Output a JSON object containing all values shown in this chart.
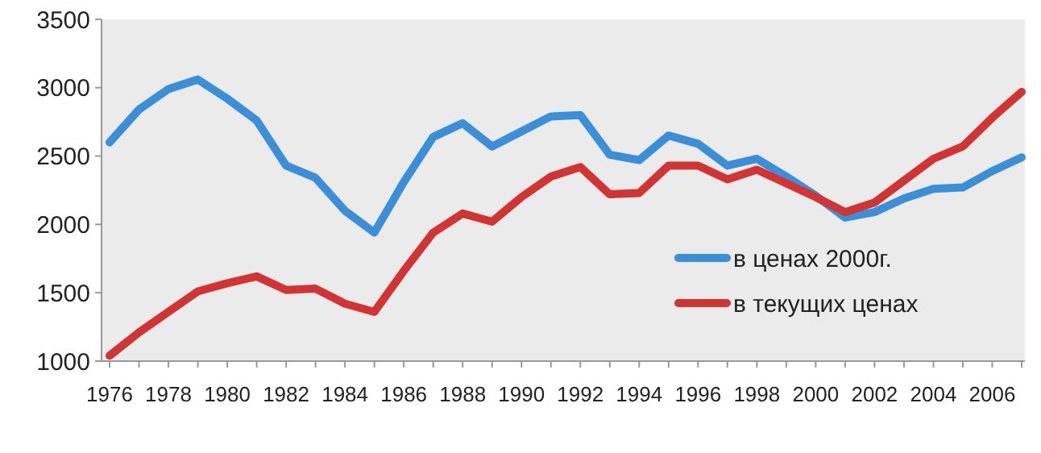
{
  "chart_data": {
    "type": "line",
    "categories": [
      "1976",
      null,
      "1978",
      null,
      "1980",
      null,
      "1982",
      null,
      "1984",
      null,
      "1986",
      null,
      "1988",
      null,
      "1990",
      null,
      "1992",
      null,
      "1994",
      null,
      "1996",
      null,
      "1998",
      null,
      "2000",
      null,
      "2002",
      null,
      "2004",
      null,
      "2006",
      null
    ],
    "series": [
      {
        "name": "в ценах 2000г.",
        "color": "#3b8fd8",
        "values": [
          2600,
          2840,
          2990,
          3060,
          2920,
          2760,
          2430,
          2340,
          2100,
          1940,
          2310,
          2640,
          2740,
          2570,
          2680,
          2790,
          2800,
          2510,
          2470,
          2650,
          2590,
          2430,
          2480,
          2350,
          2210,
          2050,
          2090,
          2190,
          2260,
          2270,
          2390,
          2490
        ]
      },
      {
        "name": "в текущих ценах",
        "color": "#d23333",
        "values": [
          1040,
          1210,
          1360,
          1510,
          1570,
          1620,
          1520,
          1530,
          1420,
          1360,
          1660,
          1940,
          2080,
          2020,
          2200,
          2350,
          2420,
          2220,
          2230,
          2430,
          2430,
          2330,
          2400,
          2300,
          2200,
          2090,
          2160,
          2320,
          2480,
          2570,
          2780,
          2970
        ]
      }
    ],
    "ylim": [
      1000,
      3500
    ],
    "yticks": [
      1000,
      1500,
      2000,
      2500,
      3000,
      3500
    ],
    "grid": false,
    "legend": "right",
    "marker": "none",
    "line_style": "solid"
  }
}
